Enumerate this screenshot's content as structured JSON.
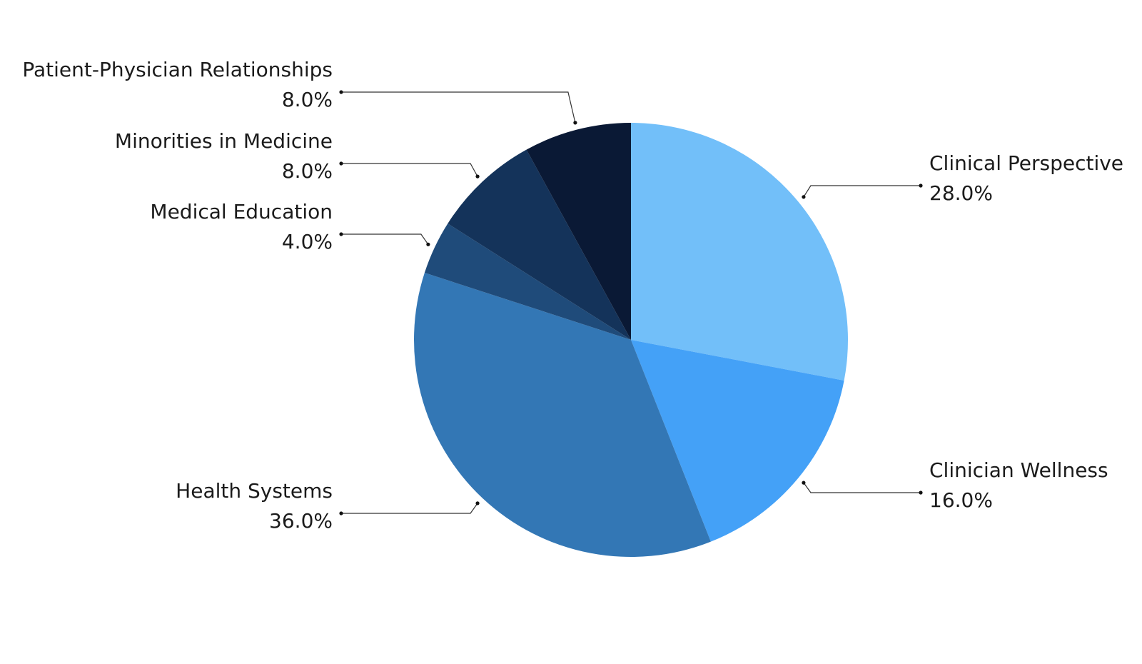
{
  "chart_data": {
    "type": "pie",
    "title": "",
    "start": "12 o'clock",
    "direction": "clockwise",
    "slices": [
      {
        "label": "Clinical Perspective",
        "value": 28.0,
        "display": "28.0%",
        "color": "#72BFF9",
        "label_side": "right"
      },
      {
        "label": "Clinician Wellness",
        "value": 16.0,
        "display": "16.0%",
        "color": "#44A1F7",
        "label_side": "right"
      },
      {
        "label": "Health Systems",
        "value": 36.0,
        "display": "36.0%",
        "color": "#3377B5",
        "label_side": "left"
      },
      {
        "label": "Medical Education",
        "value": 4.0,
        "display": "4.0%",
        "color": "#1F4B7A",
        "label_side": "left"
      },
      {
        "label": "Minorities in Medicine",
        "value": 8.0,
        "display": "8.0%",
        "color": "#14335A",
        "label_side": "left"
      },
      {
        "label": "Patient-Physician Relationships",
        "value": 8.0,
        "display": "8.0%",
        "color": "#0A1935",
        "label_side": "left"
      }
    ]
  }
}
